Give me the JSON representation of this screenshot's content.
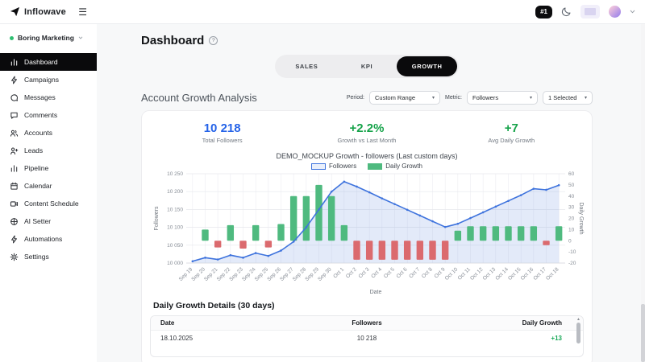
{
  "topbar": {
    "brand": "Inflowave",
    "hamburger_icon": "hamburger-icon",
    "rank_badge": "#1",
    "icons": [
      "moon-icon",
      "language-flag-icon",
      "avatar",
      "chevron-down-icon"
    ]
  },
  "sidebar": {
    "workspace": {
      "name": "Boring Marketing",
      "status_color": "#2fbf71"
    },
    "items": [
      {
        "label": "Dashboard",
        "icon": "bar-chart",
        "active": true
      },
      {
        "label": "Campaigns",
        "icon": "lightning",
        "active": false
      },
      {
        "label": "Messages",
        "icon": "chat-round",
        "active": false
      },
      {
        "label": "Comments",
        "icon": "chat-square",
        "active": false
      },
      {
        "label": "Accounts",
        "icon": "users",
        "active": false
      },
      {
        "label": "Leads",
        "icon": "user-plus",
        "active": false
      },
      {
        "label": "Pipeline",
        "icon": "bar-chart",
        "active": false
      },
      {
        "label": "Calendar",
        "icon": "calendar",
        "active": false
      },
      {
        "label": "Content Schedule",
        "icon": "video-camera",
        "active": false
      },
      {
        "label": "AI Setter",
        "icon": "globe",
        "active": false
      },
      {
        "label": "Automations",
        "icon": "lightning",
        "active": false
      },
      {
        "label": "Settings",
        "icon": "gear",
        "active": false
      }
    ]
  },
  "header": {
    "title": "Dashboard",
    "help_icon": "?"
  },
  "tabs": [
    {
      "label": "SALES",
      "active": false
    },
    {
      "label": "KPI",
      "active": false
    },
    {
      "label": "GROWTH",
      "active": true
    }
  ],
  "filters": {
    "section_title": "Account Growth Analysis",
    "period_label": "Period:",
    "period_value": "Custom Range",
    "metric_label": "Metric:",
    "metric_value": "Followers",
    "accounts_value": "1 Selected"
  },
  "stats": [
    {
      "value": "10 218",
      "label": "Total Followers",
      "color": "#2563e8"
    },
    {
      "value": "+2.2%",
      "label": "Growth vs Last Month",
      "color": "#16a34a"
    },
    {
      "value": "+7",
      "label": "Avg Daily Growth",
      "color": "#16a34a"
    }
  ],
  "chart_data": {
    "type": "line+bar",
    "title": "DEMO_MOCKUP Growth - followers (Last custom days)",
    "xlabel": "Date",
    "grid": true,
    "legend_position": "top",
    "x": [
      "Sep 19",
      "Sep 20",
      "Sep 21",
      "Sep 22",
      "Sep 23",
      "Sep 24",
      "Sep 25",
      "Sep 26",
      "Sep 27",
      "Sep 28",
      "Sep 29",
      "Sep 30",
      "Oct 1",
      "Oct 2",
      "Oct 3",
      "Oct 4",
      "Oct 5",
      "Oct 6",
      "Oct 7",
      "Oct 8",
      "Oct 9",
      "Oct 10",
      "Oct 11",
      "Oct 12",
      "Oct 13",
      "Oct 14",
      "Oct 15",
      "Oct 16",
      "Oct 17",
      "Oct 18"
    ],
    "series": [
      {
        "name": "Followers",
        "type": "line",
        "axis": "left",
        "color": "#3e73dd",
        "fill": "rgba(90,130,220,0.17)",
        "values": [
          10005,
          10015,
          10010,
          10022,
          10015,
          10028,
          10020,
          10035,
          10060,
          10100,
          10150,
          10200,
          10228,
          10214,
          10198,
          10181,
          10165,
          10149,
          10133,
          10117,
          10101,
          10110,
          10126,
          10142,
          10158,
          10174,
          10190,
          10208,
          10205,
          10218
        ]
      },
      {
        "name": "Daily Growth",
        "type": "bar",
        "axis": "right",
        "color_positive": "#4fba7f",
        "color_negative": "#db6a6e",
        "values": [
          0,
          10,
          -6,
          14,
          -7,
          14,
          -6,
          15,
          40,
          40,
          50,
          40,
          14,
          -17,
          -17,
          -17,
          -17,
          -17,
          -17,
          -17,
          -17,
          9,
          13,
          13,
          13,
          13,
          13,
          13,
          -4,
          13
        ]
      }
    ],
    "left_axis": {
      "label": "Followers",
      "min": 10000,
      "max": 10250,
      "tick_values": [
        10250,
        10200,
        10150,
        10100,
        10050,
        10000
      ],
      "tick_labels": [
        "10 250",
        "10 200",
        "10 150",
        "10 100",
        "10 050",
        "10 000"
      ]
    },
    "right_axis": {
      "label": "Daily Growth",
      "min": -20,
      "max": 60,
      "tick_values": [
        60,
        50,
        40,
        30,
        20,
        10,
        0,
        -10,
        -20
      ],
      "tick_labels": [
        "60",
        "50",
        "40",
        "30",
        "20",
        "10",
        "0",
        "-10",
        "-20"
      ]
    }
  },
  "table": {
    "title": "Daily Growth Details (30 days)",
    "columns": [
      "Date",
      "Followers",
      "Daily Growth"
    ],
    "rows": [
      {
        "date": "18.10.2025",
        "followers": "10 218",
        "growth": "+13",
        "growth_positive": true
      }
    ]
  }
}
